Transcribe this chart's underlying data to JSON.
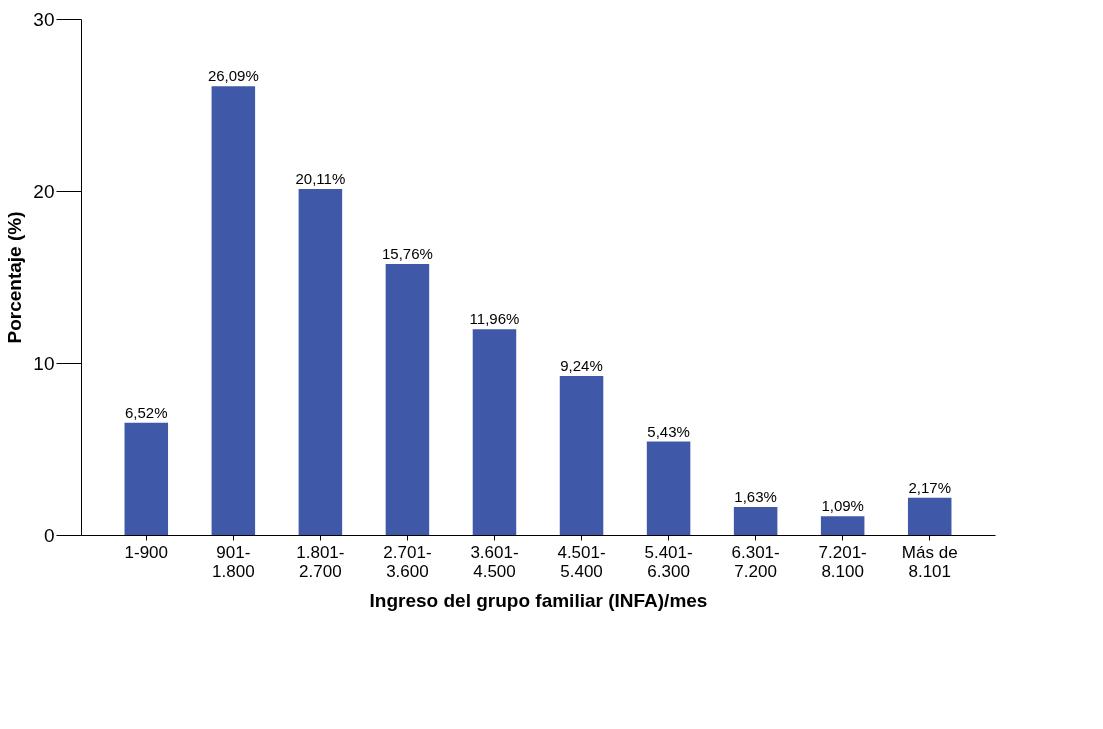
{
  "chart_data": {
    "type": "bar",
    "xlabel": "Ingreso del grupo familiar (INFA)/mes",
    "ylabel": "Porcentaje (%)",
    "categories": [
      "1-900",
      "901-\n1.800",
      "1.801-\n2.700",
      "2.701-\n3.600",
      "3.601-\n4.500",
      "4.501-\n5.400",
      "5.401-\n6.300",
      "6.301-\n7.200",
      "7.201-\n8.100",
      "Más de\n8.101"
    ],
    "values": [
      6.52,
      26.09,
      20.11,
      15.76,
      11.96,
      9.24,
      5.43,
      1.63,
      1.09,
      2.17
    ],
    "value_labels": [
      "6,52%",
      "26,09%",
      "20,11%",
      "15,76%",
      "11,96%",
      "9,24%",
      "5,43%",
      "1,63%",
      "1,09%",
      "2,17%"
    ],
    "color": "#3f58a8",
    "ylim": [
      0,
      30
    ],
    "yticks": [
      0,
      10,
      20,
      30
    ],
    "grid": false
  }
}
